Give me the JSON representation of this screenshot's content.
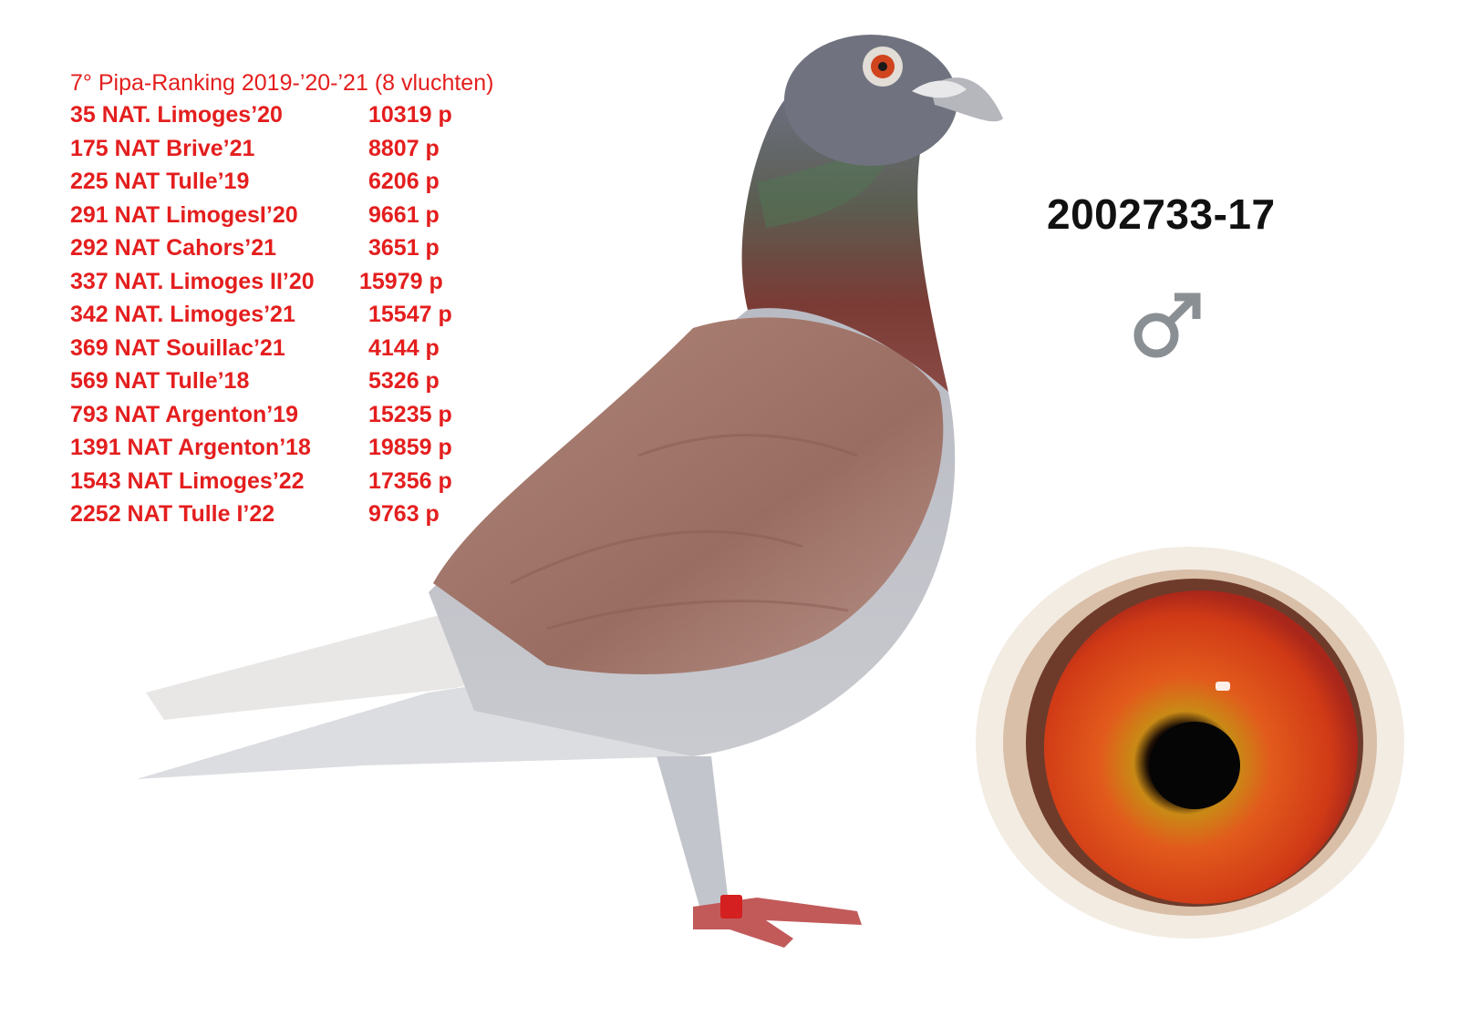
{
  "ranking_title": "7° Pipa-Ranking 2019-’20-’21 (8 vluchten)",
  "results": [
    {
      "race": "35 NAT. Limoges’20",
      "points": "10319 p"
    },
    {
      "race": "175 NAT Brive’21",
      "points": "8807 p"
    },
    {
      "race": "225 NAT Tulle’19",
      "points": "6206 p"
    },
    {
      "race": "291 NAT LimogesI’20",
      "points": "9661 p"
    },
    {
      "race": "292 NAT Cahors’21",
      "points": "3651 p"
    },
    {
      "race": "337 NAT. Limoges II’20",
      "points": "15979 p"
    },
    {
      "race": "342 NAT. Limoges’21",
      "points": "15547 p"
    },
    {
      "race": "369 NAT Souillac’21",
      "points": "4144 p"
    },
    {
      "race": "569 NAT Tulle’18",
      "points": "5326 p"
    },
    {
      "race": "793 NAT Argenton’19",
      "points": "15235 p"
    },
    {
      "race": "1391 NAT Argenton’18",
      "points": "19859 p"
    },
    {
      "race": "1543 NAT Limoges’22",
      "points": "17356 p"
    },
    {
      "race": "2252 NAT Tulle I’22",
      "points": "9763 p"
    }
  ],
  "ring_number": "2002733-17",
  "sex_icon": "male-symbol-icon",
  "colors": {
    "results_text": "#e41e1e",
    "ring_text": "#111111",
    "sex_symbol": "#8a8f94"
  }
}
